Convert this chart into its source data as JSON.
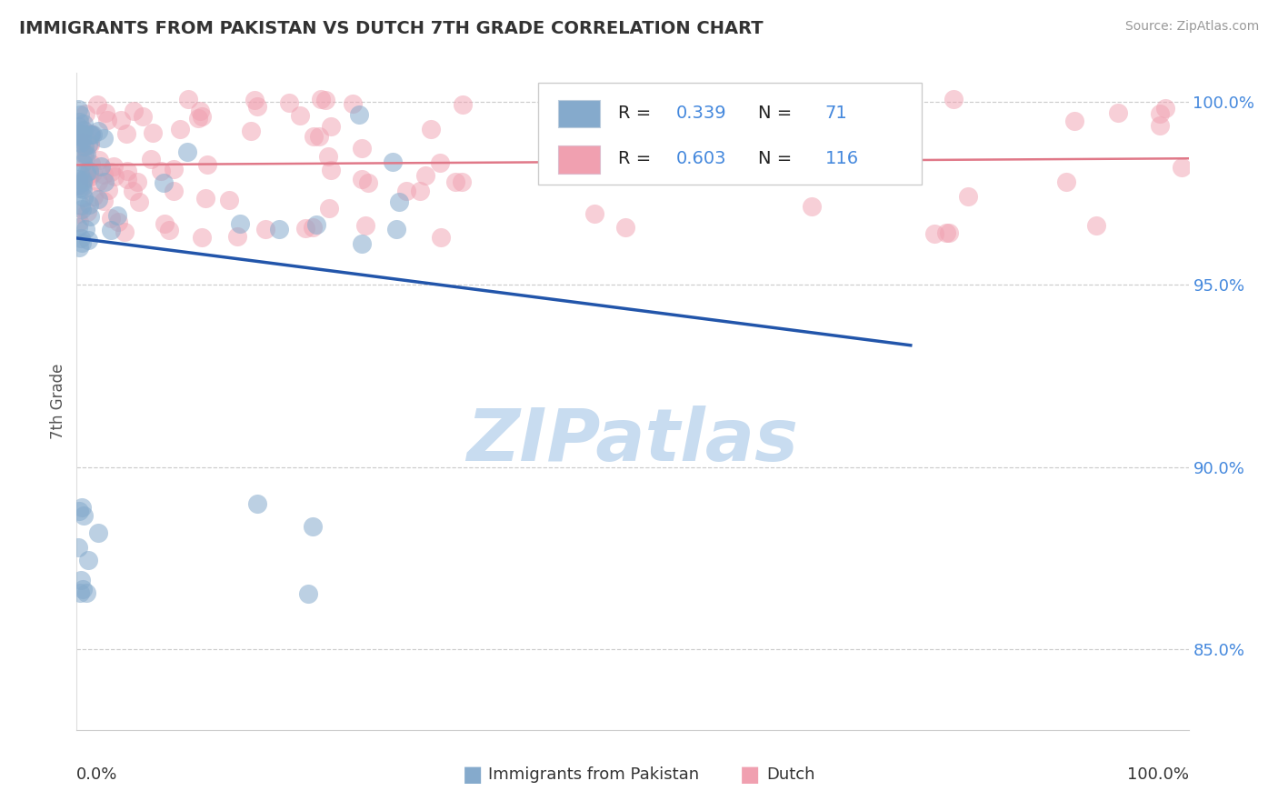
{
  "title": "IMMIGRANTS FROM PAKISTAN VS DUTCH 7TH GRADE CORRELATION CHART",
  "source": "Source: ZipAtlas.com",
  "ylabel": "7th Grade",
  "legend_labels": [
    "Immigrants from Pakistan",
    "Dutch"
  ],
  "legend_r": [
    0.339,
    0.603
  ],
  "legend_n": [
    71,
    116
  ],
  "blue_color": "#85AACC",
  "pink_color": "#F0A0B0",
  "blue_line_color": "#2255AA",
  "pink_line_color": "#E07888",
  "xlim": [
    0.0,
    1.0
  ],
  "ylim": [
    0.828,
    1.008
  ],
  "ytick_vals": [
    0.85,
    0.9,
    0.95,
    1.0
  ],
  "ytick_labels": [
    "85.0%",
    "90.0%",
    "95.0%",
    "100.0%"
  ],
  "grid_color": "#CCCCCC",
  "tick_color": "#4488DD",
  "watermark_color": "#C8DCF0"
}
